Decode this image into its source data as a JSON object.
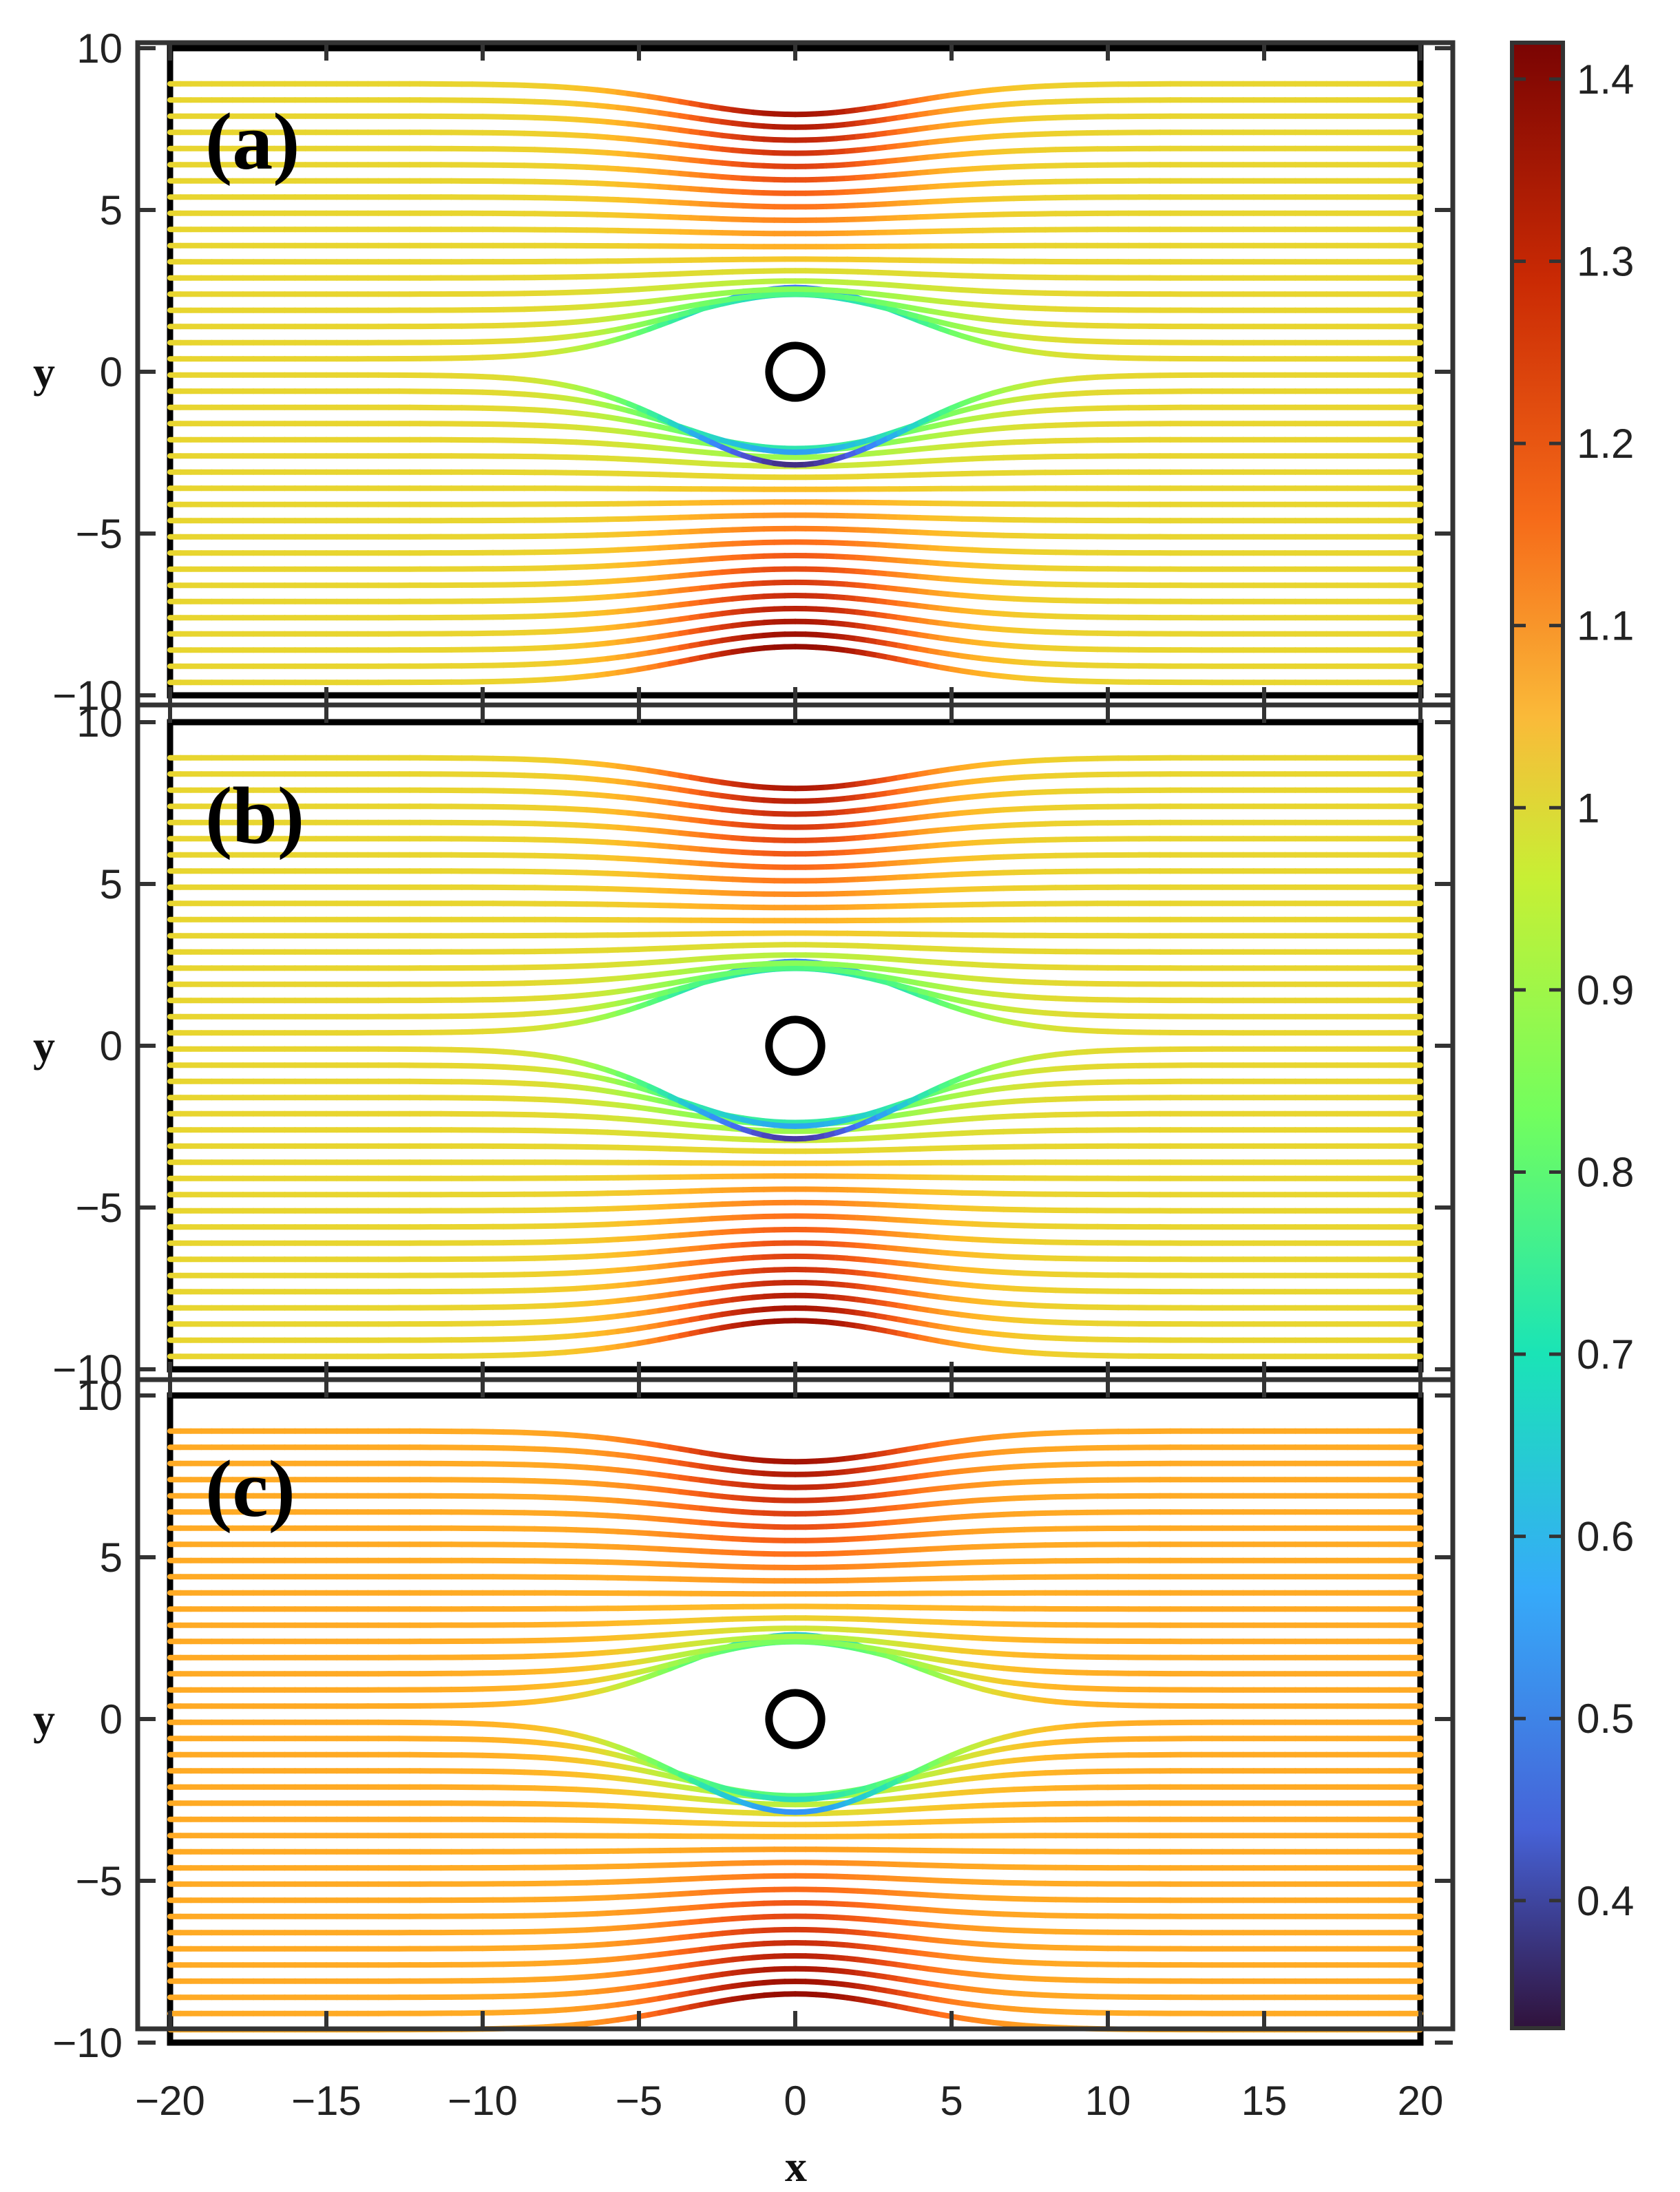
{
  "chart_data": {
    "type": "streamline",
    "panels": [
      {
        "label": "(a)",
        "xlim": [
          -20,
          20
        ],
        "ylim": [
          -10,
          10
        ],
        "obstacle": {
          "type": "circle",
          "center": [
            0,
            0
          ],
          "radius": 0.8
        },
        "speed_max_near_walls": 1.4,
        "speed_min_near_cylinder": 0.33
      },
      {
        "label": "(b)",
        "xlim": [
          -20,
          20
        ],
        "ylim": [
          -10,
          10
        ],
        "obstacle": {
          "type": "circle",
          "center": [
            0,
            0
          ],
          "radius": 0.8
        },
        "speed_max_near_walls": 1.38,
        "speed_min_near_cylinder": 0.35
      },
      {
        "label": "(c)",
        "xlim": [
          -20,
          20
        ],
        "ylim": [
          -10,
          10
        ],
        "obstacle": {
          "type": "circle",
          "center": [
            0,
            0
          ],
          "radius": 0.8
        },
        "speed_max_near_walls": 1.4,
        "speed_min_near_cylinder": 0.5
      }
    ],
    "x_axis": {
      "label": "x",
      "lim": [
        -21,
        21
      ],
      "ticks": [
        -20,
        -15,
        -10,
        -5,
        0,
        5,
        10,
        15,
        20
      ],
      "tick_labels": [
        "−20",
        "−15",
        "−10",
        "−5",
        "0",
        "5",
        "10",
        "15",
        "20"
      ]
    },
    "y_axis": {
      "label": "y",
      "lim": [
        -11,
        11
      ],
      "ticks": [
        10,
        5,
        0,
        -5,
        -10
      ],
      "tick_labels": [
        "10",
        "5",
        "0",
        "−5",
        "−10"
      ]
    },
    "colorbar": {
      "min": 0.33,
      "max": 1.42,
      "ticks": [
        1.4,
        1.3,
        1.2,
        1.1,
        1,
        0.9,
        0.8,
        0.7,
        0.6,
        0.5,
        0.4
      ],
      "tick_labels": [
        "1.4",
        "1.3",
        "1.2",
        "1.1",
        "1",
        "0.9",
        "0.8",
        "0.7",
        "0.6",
        "0.5",
        "0.4"
      ],
      "colormap": "turbo"
    },
    "streamline_y0": [
      -9.6,
      -9.1,
      -8.6,
      -8.1,
      -7.6,
      -7.1,
      -6.6,
      -6.1,
      -5.6,
      -5.1,
      -4.6,
      -4.1,
      -3.6,
      -3.1,
      -2.6,
      -2.1,
      -1.6,
      -1.1,
      -0.6,
      -0.1,
      0.4,
      0.9,
      1.4,
      1.9,
      2.4,
      2.9,
      3.4,
      3.9,
      4.4,
      4.9,
      5.4,
      5.9,
      6.4,
      6.9,
      7.4,
      7.9,
      8.4,
      8.9
    ]
  }
}
